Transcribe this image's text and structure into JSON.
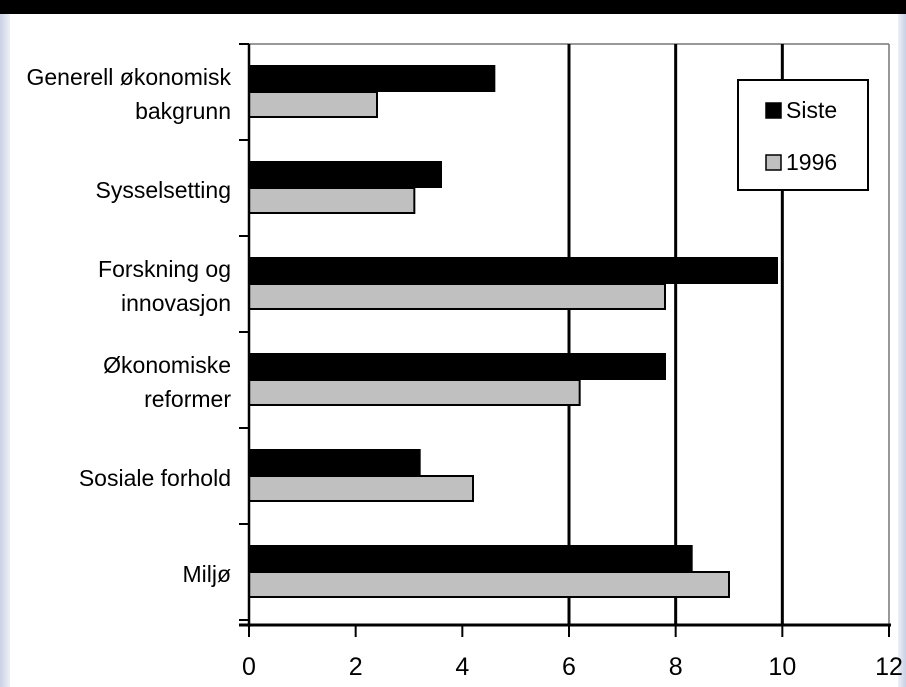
{
  "chart_data": {
    "type": "bar",
    "orientation": "horizontal",
    "title": "",
    "xlabel": "",
    "ylabel": "",
    "categories": [
      [
        "Generell økonomisk",
        "bakgrunn"
      ],
      [
        "Sysselsetting"
      ],
      [
        "Forskning og",
        "innovasjon"
      ],
      [
        "Økonomiske",
        "reformer"
      ],
      [
        "Sosiale forhold"
      ],
      [
        "Miljø"
      ]
    ],
    "series": [
      {
        "name": "Siste",
        "color": "#000000",
        "values": [
          4.6,
          3.6,
          9.9,
          7.8,
          3.2,
          8.3
        ]
      },
      {
        "name": "1996",
        "color": "#c0c0c0",
        "values": [
          2.4,
          3.1,
          7.8,
          6.2,
          4.2,
          9.0
        ]
      }
    ],
    "xlim": [
      0,
      12
    ],
    "xticks": [
      0,
      2,
      4,
      6,
      8,
      10,
      12
    ],
    "xtick_labels": [
      "0",
      "2",
      "4",
      "6",
      "8",
      "10",
      "12"
    ],
    "grid": {
      "major_vertical": [
        6,
        8,
        10
      ]
    },
    "legend": {
      "position": "top-right",
      "entries": [
        "Siste",
        "1996"
      ]
    }
  }
}
